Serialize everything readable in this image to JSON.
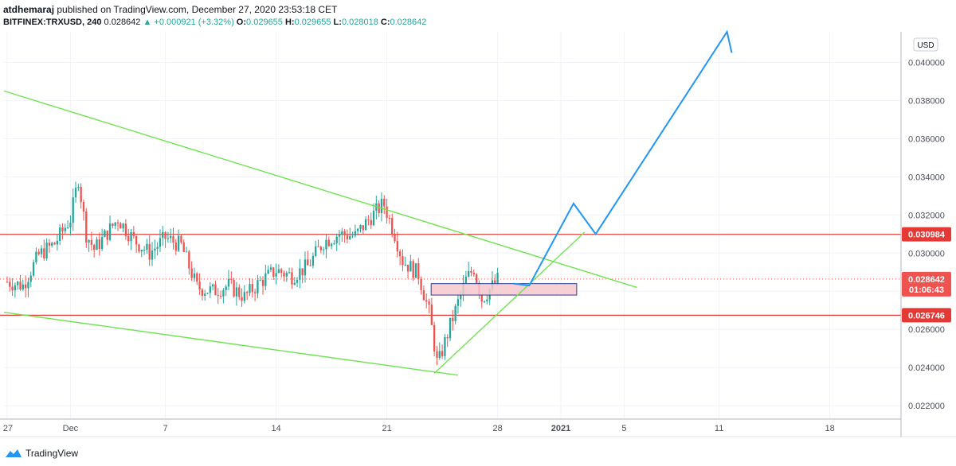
{
  "header": {
    "author": "atdhemaraj",
    "published": "published on TradingView.com, December 27, 2020 23:53:18 CET",
    "symbol": "BITFINEX:TRXUSD, 240",
    "last": "0.028642",
    "change": "▲ +0.000921 (+3.32%)",
    "o_label": "O:",
    "o": "0.029655",
    "h_label": "H:",
    "h": "0.029655",
    "l_label": "L:",
    "l": "0.028018",
    "c_label": "C:",
    "c": "0.028642"
  },
  "footer": {
    "brand": "TradingView"
  },
  "currency_button": "USD",
  "colors": {
    "bull": "#26a69a",
    "bear": "#ef5350",
    "trend": "#6fe34f",
    "projection": "#2196f3",
    "level": "#e53935",
    "zone_fill": "#f6c7cd",
    "zone_border": "#2a3f8f"
  },
  "chart_data": {
    "type": "candlestick",
    "symbol": "BITFINEX:TRXUSD",
    "timeframe": "240",
    "yaxis": {
      "ticks": [
        "0.022000",
        "0.024000",
        "0.026000",
        "0.028000",
        "0.030000",
        "0.032000",
        "0.034000",
        "0.036000",
        "0.038000",
        "0.040000"
      ],
      "ylim": [
        0.0213,
        0.0416
      ]
    },
    "xaxis": {
      "ticks": [
        {
          "label": "27",
          "day": 0
        },
        {
          "label": "Dec",
          "day": 4
        },
        {
          "label": "7",
          "day": 10
        },
        {
          "label": "14",
          "day": 17
        },
        {
          "label": "21",
          "day": 24
        },
        {
          "label": "28",
          "day": 31
        },
        {
          "label": "2021",
          "day": 35
        },
        {
          "label": "5",
          "day": 39
        },
        {
          "label": "11",
          "day": 45
        },
        {
          "label": "18",
          "day": 52
        }
      ],
      "range_days": [
        -0.2,
        56.5
      ]
    },
    "price_labels": [
      {
        "text": "0.030984",
        "value": 0.030984,
        "color": "#e53935"
      },
      {
        "text": "0.028642",
        "value": 0.028642,
        "color": "#ef5350"
      },
      {
        "text": "01:06:43",
        "value": 0.028098,
        "color": "#ef5350"
      },
      {
        "text": "0.026746",
        "value": 0.026746,
        "color": "#e53935"
      }
    ],
    "horizontal_levels": [
      0.030984,
      0.026746
    ],
    "last_price": 0.028642,
    "key_points": [
      {
        "day": 0.0,
        "close": 0.0285
      },
      {
        "day": 1.0,
        "close": 0.0283
      },
      {
        "day": 2.0,
        "close": 0.0299
      },
      {
        "day": 3.0,
        "close": 0.0305
      },
      {
        "day": 4.0,
        "close": 0.0318
      },
      {
        "day": 4.5,
        "close": 0.0339
      },
      {
        "day": 5.0,
        "close": 0.031
      },
      {
        "day": 5.5,
        "close": 0.0302
      },
      {
        "day": 6.0,
        "close": 0.0307
      },
      {
        "day": 7.0,
        "close": 0.0318
      },
      {
        "day": 8.0,
        "close": 0.0307
      },
      {
        "day": 9.0,
        "close": 0.03
      },
      {
        "day": 10.0,
        "close": 0.0308
      },
      {
        "day": 11.0,
        "close": 0.0304
      },
      {
        "day": 12.0,
        "close": 0.0282
      },
      {
        "day": 13.0,
        "close": 0.028
      },
      {
        "day": 14.0,
        "close": 0.0283
      },
      {
        "day": 15.0,
        "close": 0.0277
      },
      {
        "day": 16.0,
        "close": 0.0285
      },
      {
        "day": 17.0,
        "close": 0.0291
      },
      {
        "day": 18.0,
        "close": 0.0288
      },
      {
        "day": 19.0,
        "close": 0.0293
      },
      {
        "day": 20.0,
        "close": 0.0306
      },
      {
        "day": 21.0,
        "close": 0.031
      },
      {
        "day": 22.0,
        "close": 0.0309
      },
      {
        "day": 23.0,
        "close": 0.0319
      },
      {
        "day": 23.8,
        "close": 0.0326
      },
      {
        "day": 24.5,
        "close": 0.031
      },
      {
        "day": 25.0,
        "close": 0.0296
      },
      {
        "day": 26.0,
        "close": 0.0289
      },
      {
        "day": 26.7,
        "close": 0.0268
      },
      {
        "day": 27.2,
        "close": 0.0241
      },
      {
        "day": 28.0,
        "close": 0.0262
      },
      {
        "day": 29.0,
        "close": 0.0286
      },
      {
        "day": 29.5,
        "close": 0.0292
      },
      {
        "day": 30.0,
        "close": 0.0276
      },
      {
        "day": 30.6,
        "close": 0.0282
      },
      {
        "day": 31.0,
        "close": 0.0286
      }
    ],
    "drawings": {
      "trendlines": [
        {
          "from": {
            "day": -0.2,
            "value": 0.0385
          },
          "to": {
            "day": 39.8,
            "value": 0.0282
          }
        },
        {
          "from": {
            "day": -0.2,
            "value": 0.0269
          },
          "to": {
            "day": 28.5,
            "value": 0.0236
          }
        },
        {
          "from": {
            "day": 27.0,
            "value": 0.0237
          },
          "to": {
            "day": 36.5,
            "value": 0.0311
          }
        }
      ],
      "zone": {
        "from_day": 26.8,
        "to_day": 36.0,
        "top": 0.0284,
        "bottom": 0.0278
      },
      "projection_path": [
        {
          "day": 32.0,
          "value": 0.0284
        },
        {
          "day": 33.0,
          "value": 0.0283
        },
        {
          "day": 35.8,
          "value": 0.0326
        },
        {
          "day": 37.2,
          "value": 0.031
        },
        {
          "day": 45.5,
          "value": 0.0416
        },
        {
          "day": 45.8,
          "value": 0.0405
        }
      ]
    }
  }
}
